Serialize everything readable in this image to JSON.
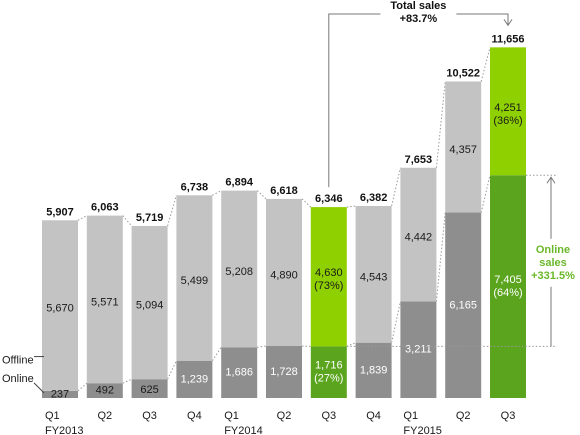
{
  "chart_data": {
    "type": "bar",
    "stacked": true,
    "categories": [
      {
        "q": "Q1",
        "fy": "FY2013"
      },
      {
        "q": "Q2",
        "fy": ""
      },
      {
        "q": "Q3",
        "fy": ""
      },
      {
        "q": "Q4",
        "fy": ""
      },
      {
        "q": "Q1",
        "fy": "FY2014"
      },
      {
        "q": "Q2",
        "fy": ""
      },
      {
        "q": "Q3",
        "fy": ""
      },
      {
        "q": "Q4",
        "fy": ""
      },
      {
        "q": "Q1",
        "fy": "FY2015"
      },
      {
        "q": "Q2",
        "fy": ""
      },
      {
        "q": "Q3",
        "fy": ""
      }
    ],
    "series": [
      {
        "name": "Online",
        "values": [
          237,
          492,
          625,
          1239,
          1686,
          1728,
          1716,
          1839,
          3211,
          6165,
          7405
        ],
        "labels": [
          "237",
          "492",
          "625",
          "1,239",
          "1,686",
          "1,728",
          "1,716\n(27%)",
          "1,839",
          "3,211",
          "6,165",
          "7,405\n(64%)"
        ]
      },
      {
        "name": "Offline",
        "values": [
          5670,
          5571,
          5094,
          5499,
          5208,
          4890,
          4630,
          4543,
          4442,
          4357,
          4251
        ],
        "labels": [
          "5,670",
          "5,571",
          "5,094",
          "5,499",
          "5,208",
          "4,890",
          "4,630\n(73%)",
          "4,543",
          "4,442",
          "4,357",
          "4,251\n(36%)"
        ]
      }
    ],
    "totals": [
      5907,
      6063,
      5719,
      6738,
      6894,
      6618,
      6346,
      6382,
      7653,
      10522,
      11656
    ],
    "total_labels": [
      "5,907",
      "6,063",
      "5,719",
      "6,738",
      "6,894",
      "6,618",
      "6,346",
      "6,382",
      "7,653",
      "10,522",
      "11,656"
    ],
    "highlighted": [
      6,
      10
    ],
    "ylim": [
      0,
      12000
    ],
    "annotations": {
      "total_sales": {
        "title": "Total sales",
        "value": "+83.7%",
        "from_index": 6,
        "to_index": 10
      },
      "online_sales": {
        "lines": [
          "Online",
          "sales",
          "+331.5%"
        ],
        "from_index": 6,
        "to_index": 10
      }
    }
  },
  "colors": {
    "offline": "#c3c3c3",
    "online": "#8e8e8e",
    "highlight_offline": "#8fd000",
    "highlight_online": "#5aa41e",
    "connector": "#9a9a9a",
    "annotation_green": "#6ab82a"
  }
}
